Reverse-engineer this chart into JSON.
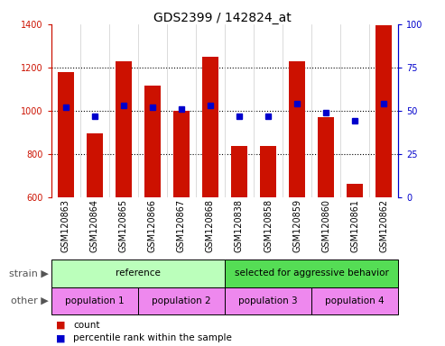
{
  "title": "GDS2399 / 142824_at",
  "samples": [
    "GSM120863",
    "GSM120864",
    "GSM120865",
    "GSM120866",
    "GSM120867",
    "GSM120868",
    "GSM120838",
    "GSM120858",
    "GSM120859",
    "GSM120860",
    "GSM120861",
    "GSM120862"
  ],
  "counts": [
    1180,
    895,
    1230,
    1115,
    1000,
    1250,
    835,
    835,
    1230,
    970,
    660,
    1395
  ],
  "percentile_ranks": [
    52,
    47,
    53,
    52,
    51,
    53,
    47,
    47,
    54,
    49,
    44,
    54
  ],
  "ylim_left": [
    600,
    1400
  ],
  "ylim_right": [
    0,
    100
  ],
  "yticks_left": [
    600,
    800,
    1000,
    1200,
    1400
  ],
  "yticks_right": [
    0,
    25,
    50,
    75,
    100
  ],
  "bar_color": "#cc1100",
  "dot_color": "#0000cc",
  "strain_groups": [
    {
      "label": "reference",
      "start": 0,
      "end": 6,
      "color": "#bbffbb"
    },
    {
      "label": "selected for aggressive behavior",
      "start": 6,
      "end": 12,
      "color": "#55dd55"
    }
  ],
  "other_groups": [
    {
      "label": "population 1",
      "start": 0,
      "end": 3,
      "color": "#ee88ee"
    },
    {
      "label": "population 2",
      "start": 3,
      "end": 6,
      "color": "#ee88ee"
    },
    {
      "label": "population 3",
      "start": 6,
      "end": 9,
      "color": "#ee88ee"
    },
    {
      "label": "population 4",
      "start": 9,
      "end": 12,
      "color": "#ee88ee"
    }
  ],
  "xtick_bg": "#cccccc",
  "strain_label": "strain",
  "other_label": "other",
  "legend_count_label": "count",
  "legend_pct_label": "percentile rank within the sample",
  "title_fontsize": 10,
  "tick_fontsize": 7,
  "label_fontsize": 8,
  "annotation_fontsize": 7.5
}
